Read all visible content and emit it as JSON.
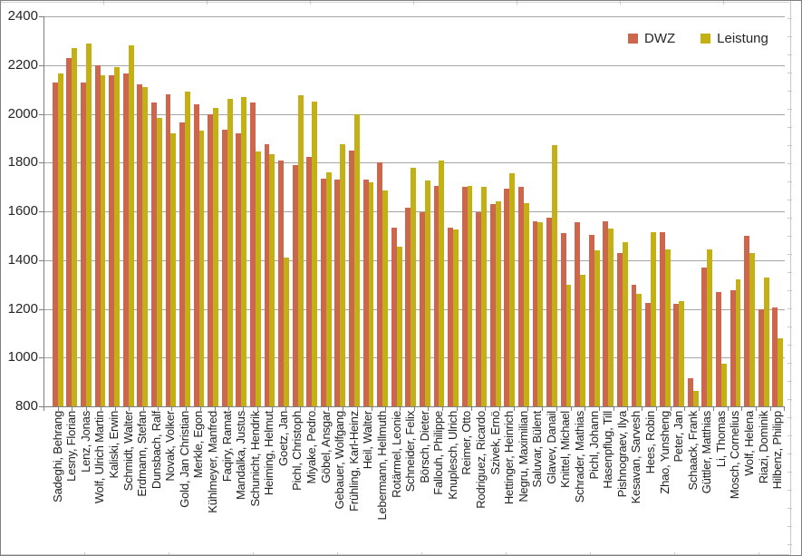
{
  "legend": {
    "dwz": "DWZ",
    "leistung": "Leistung"
  },
  "colors": {
    "dwz": "#CC664D",
    "leistung": "#C2B014",
    "gridline": "#A6A6A6",
    "axis": "#808080"
  },
  "y_axis": {
    "min": 800,
    "max": 2400,
    "step": 200,
    "ticks": [
      2400,
      2200,
      2000,
      1800,
      1600,
      1400,
      1200,
      1000,
      800
    ]
  },
  "chart_data": {
    "type": "bar",
    "title": "",
    "xlabel": "",
    "ylabel": "",
    "ylim": [
      800,
      2400
    ],
    "grid": true,
    "legend_position": "top-right",
    "categories": [
      "Sadeghi, Behrang",
      "Lesny, Florian",
      "Lenz, Jonas",
      "Wolf, Ulrich Martin",
      "Kaliski, Erwin",
      "Schmidt, Walter",
      "Erdmann, Stefan",
      "Dunsbach, Ralf",
      "Novak, Volker",
      "Gold, Jan Christian",
      "Merkle, Egon",
      "Kühlmeyer, Manfred",
      "Faqiry, Ramat",
      "Mandalka, Justus",
      "Schunicht, Hendrik",
      "Heiming, Helmut",
      "Goetz, Jan",
      "Pichl, Christoph",
      "Miyake, Pedro",
      "Göbel, Ansgar",
      "Gebauer, Wolfgang",
      "Frühling, Karl-Heinz",
      "Heil, Walter",
      "Lebermann, Hellmuth",
      "Rotärmel, Leonie",
      "Schneider, Felix",
      "Börsch, Dieter",
      "Fallouh, Philippe",
      "Knuplesch, Ulrich",
      "Reimer, Otto",
      "Rodriguez, Ricardo",
      "Szivek, Ernö",
      "Hettinger, Heinrich",
      "Negru, Maximilian",
      "Saluvar, Bülent",
      "Glavev, Danail",
      "Knittel, Michael",
      "Schrader, Mathias",
      "Pichl, Johann",
      "Hasenpflug, Till",
      "Pishnograev, Ilya",
      "Kesavan, Sarvesh",
      "Hees, Robin",
      "Zhao, Yunsheng",
      "Peter, Jan",
      "Schaack, Frank",
      "Güttler, Matthias",
      "Li, Thomas",
      "Mosch, Cornelius",
      "Wolf, Helena",
      "Riazi, Dominik",
      "Hilbenz, Philipp"
    ],
    "series": [
      {
        "name": "DWZ",
        "values": [
          2130,
          2230,
          2130,
          2200,
          2160,
          2165,
          2120,
          2045,
          2080,
          1965,
          2040,
          2000,
          1935,
          1920,
          2045,
          1875,
          1810,
          1790,
          1825,
          1735,
          1730,
          1850,
          1730,
          1800,
          1535,
          1615,
          1595,
          1705,
          1535,
          1700,
          1595,
          1630,
          1695,
          1700,
          1560,
          1575,
          1510,
          1555,
          1505,
          1560,
          1430,
          1300,
          1225,
          1515,
          1220,
          915,
          1370,
          1270,
          1275,
          1500,
          1200,
          1205
        ]
      },
      {
        "name": "Leistung",
        "values": [
          2165,
          2270,
          2290,
          2160,
          2190,
          2280,
          2110,
          1985,
          1920,
          2090,
          1930,
          2025,
          2060,
          2070,
          1845,
          1835,
          1410,
          2075,
          2050,
          1760,
          1875,
          2000,
          1720,
          1685,
          1455,
          1780,
          1725,
          1810,
          1525,
          1705,
          1700,
          1640,
          1755,
          1635,
          1555,
          1870,
          1300,
          1340,
          1440,
          1530,
          1475,
          1260,
          1515,
          1445,
          1230,
          865,
          1445,
          975,
          1320,
          1430,
          1330,
          1080
        ]
      }
    ]
  }
}
